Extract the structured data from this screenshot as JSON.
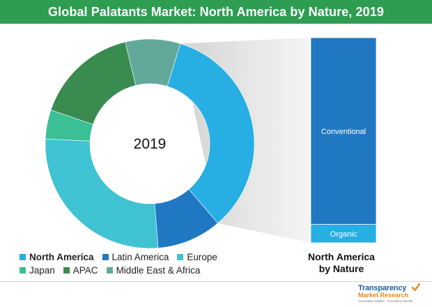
{
  "title": "Global Palatants Market: North America by Nature, 2019",
  "chart_data": [
    {
      "type": "pie",
      "variant": "donut",
      "center_label": "2019",
      "slices": [
        {
          "label": "North America",
          "value": 34,
          "color": "#27aee3"
        },
        {
          "label": "Latin America",
          "value": 10,
          "color": "#2178c2"
        },
        {
          "label": "Europe",
          "value": 27,
          "color": "#3fc3d3"
        },
        {
          "label": "Japan",
          "value": 4.5,
          "color": "#3bbf94"
        },
        {
          "label": "APAC",
          "value": 16,
          "color": "#3a8b50"
        },
        {
          "label": "Middle East & Africa",
          "value": 8.5,
          "color": "#62a99c"
        }
      ],
      "highlighted_slice": "North America",
      "legend_position": "bottom-left"
    },
    {
      "type": "bar",
      "stacked": true,
      "categories": [
        "North America by Nature"
      ],
      "series": [
        {
          "name": "Organic",
          "values": [
            9
          ],
          "color": "#27aee3"
        },
        {
          "name": "Conventional",
          "values": [
            91
          ],
          "color": "#2178c2"
        }
      ],
      "ylim": [
        0,
        100
      ],
      "caption": "North America by Nature"
    }
  ],
  "legend": {
    "rows": [
      [
        {
          "label": "North America",
          "color": "#27aee3",
          "bold": true
        },
        {
          "label": "Latin America",
          "color": "#2178c2",
          "bold": false
        },
        {
          "label": "Europe",
          "color": "#3fc3d3",
          "bold": false
        }
      ],
      [
        {
          "label": "Japan",
          "color": "#3bbf94",
          "bold": false
        },
        {
          "label": "APAC",
          "color": "#3a8b50",
          "bold": false
        },
        {
          "label": "Middle East & Africa",
          "color": "#62a99c",
          "bold": false
        }
      ]
    ]
  },
  "bar_caption": {
    "line1": "North America",
    "line2": "by Nature"
  },
  "logo": {
    "name": "Transparency",
    "name2": "Market Research",
    "tagline": "Actionable Insights · Innovative Results",
    "check_icon": "check-icon"
  }
}
